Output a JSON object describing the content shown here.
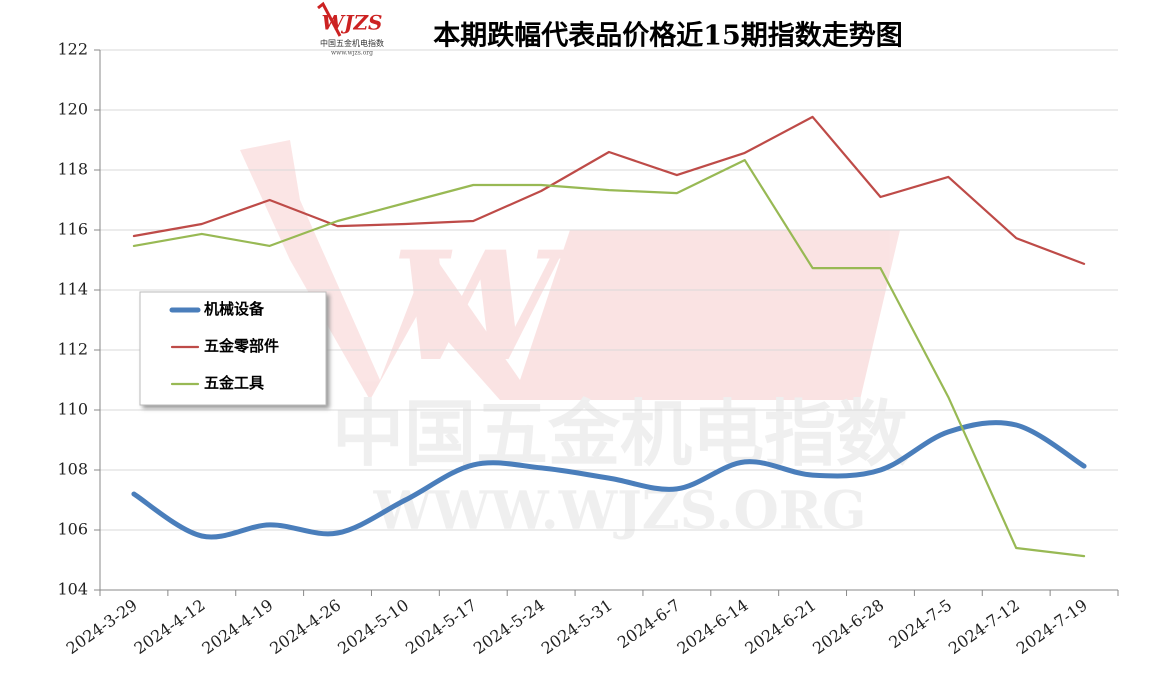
{
  "chart_data": {
    "type": "line",
    "title": "本期跌幅代表品价格近15期指数走势图",
    "logo": {
      "mark": "WJZS",
      "name": "中国五金机电指数",
      "site": "www.wjzs.org"
    },
    "watermark": {
      "mark": "WJZS",
      "name": "中国五金机电指数",
      "site": "WWW.WJZS.ORG"
    },
    "categories": [
      "2024-3-29",
      "2024-4-12",
      "2024-4-19",
      "2024-4-26",
      "2024-5-10",
      "2024-5-17",
      "2024-5-24",
      "2024-5-31",
      "2024-6-7",
      "2024-6-14",
      "2024-6-21",
      "2024-6-28",
      "2024-7-5",
      "2024-7-12",
      "2024-7-19"
    ],
    "series": [
      {
        "name": "机械设备",
        "color": "#4a7ebb",
        "smooth": true,
        "values": [
          107.2,
          105.8,
          106.17,
          105.9,
          107.0,
          108.17,
          108.07,
          107.73,
          107.37,
          108.27,
          107.83,
          108.0,
          109.27,
          109.5,
          108.13
        ]
      },
      {
        "name": "五金零部件",
        "color": "#be4b48",
        "smooth": false,
        "values": [
          115.8,
          116.2,
          117.0,
          116.13,
          116.2,
          116.3,
          117.3,
          118.6,
          117.83,
          118.57,
          119.77,
          117.1,
          117.77,
          115.73,
          114.87
        ]
      },
      {
        "name": "五金工具",
        "color": "#98b954",
        "smooth": false,
        "values": [
          115.47,
          115.87,
          115.47,
          116.3,
          116.9,
          117.5,
          117.5,
          117.33,
          117.23,
          118.33,
          114.73,
          114.73,
          110.43,
          105.4,
          105.13
        ]
      }
    ],
    "ylim": [
      104,
      122
    ],
    "yticks": [
      104,
      106,
      108,
      110,
      112,
      114,
      116,
      118,
      120,
      122
    ],
    "grid": true
  }
}
